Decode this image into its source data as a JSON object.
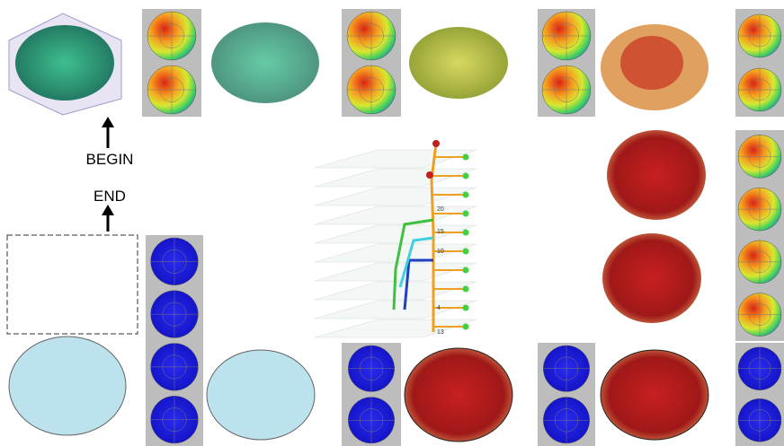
{
  "labels": {
    "begin": "BEGIN",
    "end": "END"
  },
  "graph_labels": [
    "20",
    "15",
    "10",
    "4",
    "13"
  ]
}
